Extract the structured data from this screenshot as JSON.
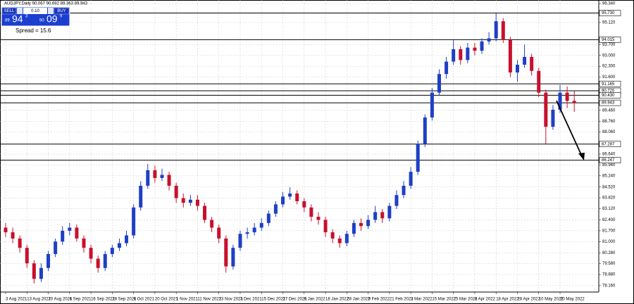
{
  "chart_data": {
    "type": "candlestick",
    "title": "AUDJPY,Daily 90.067 90.692 89.363 89.943",
    "trade_panel": {
      "sell": "SELL",
      "lot": "0.10",
      "buy": "BUY",
      "sell_price": [
        "89",
        "94",
        "3"
      ],
      "buy_price": [
        "90",
        "09",
        "9"
      ],
      "spread": "Spread = 15.6"
    },
    "up_color": "#1f3fc4",
    "down_color": "#c8102e",
    "grid": true,
    "categories": [
      "3 Aug 2021",
      null,
      null,
      "13 Aug 2021",
      null,
      null,
      "20 Aug 2021",
      null,
      null,
      "6 Sep 2021",
      null,
      null,
      "16 Sep 2021",
      null,
      null,
      "28 Sep 2021",
      null,
      null,
      "8 Oct 2021",
      null,
      null,
      "20 Oct 2021",
      null,
      null,
      "1 Nov 2021",
      null,
      null,
      "11 Nov 2021",
      null,
      null,
      "23 Nov 2021",
      null,
      null,
      "3 Dec 2021",
      null,
      null,
      "15 Dec 2021",
      null,
      null,
      "27 Dec 2021",
      null,
      null,
      "6 Jan 2022",
      null,
      null,
      "18 Jan 2022",
      null,
      null,
      "28 Jan 2022",
      null,
      null,
      "9 Feb 2022",
      null,
      null,
      "21 Feb 2022",
      null,
      null,
      "3 Mar 2022",
      null,
      null,
      "15 Mar 2022",
      null,
      null,
      "25 Mar 2022",
      null,
      null,
      "6 Apr 2022",
      null,
      null,
      "18 Apr 2022",
      null,
      null,
      "28 Apr 2022",
      null,
      null,
      "10 May 2022",
      null,
      null,
      "20 May 2022",
      null,
      null
    ],
    "open": [
      81.9,
      81.6,
      81.2,
      80.6,
      79.6,
      78.6,
      79.3,
      80.2,
      81.0,
      81.7,
      81.9,
      81.2,
      80.6,
      79.9,
      79.3,
      80.2,
      80.6,
      80.9,
      81.4,
      83.2,
      84.6,
      85.6,
      85.1,
      85.3,
      84.6,
      83.8,
      83.5,
      83.7,
      83.3,
      82.4,
      81.9,
      81.2,
      79.4,
      80.6,
      81.5,
      81.6,
      81.9,
      82.2,
      82.8,
      83.4,
      83.9,
      84.1,
      83.6,
      83.2,
      82.6,
      82.4,
      81.6,
      81.2,
      80.9,
      81.5,
      82.2,
      82.0,
      82.4,
      82.9,
      82.5,
      83.3,
      84.0,
      84.6,
      85.5,
      87.3,
      89.0,
      90.6,
      91.8,
      92.6,
      93.4,
      92.7,
      93.5,
      93.3,
      93.9,
      94.1,
      95.2,
      94.0,
      91.9,
      92.4,
      92.9,
      92.0,
      90.6,
      88.4,
      89.5,
      90.6,
      90.067
    ],
    "high": [
      82.2,
      81.9,
      81.4,
      80.8,
      79.8,
      79.6,
      80.4,
      81.2,
      82.0,
      82.2,
      82.1,
      81.4,
      80.8,
      80.1,
      80.4,
      80.8,
      81.2,
      81.7,
      83.4,
      84.9,
      86.0,
      85.9,
      85.7,
      85.5,
      84.8,
      84.1,
      84.0,
      84.0,
      83.5,
      82.6,
      82.1,
      81.4,
      80.8,
      81.7,
      81.9,
      82.2,
      82.5,
      83.0,
      83.6,
      84.2,
      84.5,
      84.3,
      83.8,
      83.4,
      82.9,
      82.6,
      81.8,
      81.4,
      81.7,
      82.4,
      82.5,
      82.7,
      83.3,
      83.1,
      83.5,
      84.3,
      84.9,
      85.8,
      87.5,
      89.2,
      90.9,
      92.1,
      92.9,
      94.0,
      93.6,
      93.8,
      93.8,
      94.1,
      94.5,
      95.73,
      95.4,
      94.2,
      92.7,
      93.7,
      93.1,
      92.2,
      90.8,
      89.8,
      91.1,
      91.0,
      90.692
    ],
    "low": [
      81.3,
      80.9,
      80.3,
      79.3,
      78.3,
      78.4,
      79.1,
      80.0,
      80.8,
      81.4,
      81.0,
      80.3,
      79.6,
      79.0,
      79.1,
      80.0,
      80.4,
      80.7,
      81.2,
      83.0,
      84.4,
      84.8,
      84.9,
      84.3,
      83.5,
      83.2,
      83.3,
      83.0,
      82.2,
      81.6,
      80.9,
      79.0,
      79.2,
      80.4,
      81.2,
      81.4,
      81.7,
      82.0,
      82.6,
      83.2,
      83.7,
      83.4,
      82.9,
      82.3,
      82.1,
      81.3,
      80.9,
      80.6,
      80.7,
      81.3,
      81.7,
      81.8,
      82.2,
      82.2,
      82.3,
      83.1,
      83.8,
      84.4,
      85.3,
      87.1,
      88.8,
      90.4,
      91.5,
      92.4,
      92.4,
      92.5,
      93.0,
      93.1,
      93.7,
      93.9,
      93.8,
      91.6,
      91.3,
      92.2,
      91.7,
      90.3,
      87.3,
      88.2,
      89.3,
      89.6,
      89.363
    ],
    "close": [
      81.6,
      81.2,
      80.6,
      79.6,
      78.6,
      79.3,
      80.2,
      81.0,
      81.7,
      81.9,
      81.2,
      80.6,
      79.9,
      79.3,
      80.2,
      80.6,
      80.9,
      81.4,
      83.2,
      84.6,
      85.6,
      85.1,
      85.3,
      84.6,
      83.8,
      83.5,
      83.7,
      83.3,
      82.4,
      81.9,
      81.2,
      79.4,
      80.6,
      81.5,
      81.6,
      81.9,
      82.2,
      82.8,
      83.4,
      83.9,
      84.1,
      83.6,
      83.2,
      82.6,
      82.4,
      81.6,
      81.2,
      80.9,
      81.5,
      82.2,
      82.0,
      82.4,
      82.9,
      82.5,
      83.3,
      84.0,
      84.6,
      85.5,
      87.3,
      89.0,
      90.6,
      91.8,
      92.6,
      93.4,
      92.7,
      93.5,
      93.3,
      93.9,
      94.1,
      95.2,
      94.0,
      91.9,
      92.4,
      92.9,
      92.0,
      90.6,
      88.4,
      89.5,
      90.6,
      90.067,
      89.943
    ],
    "ylim": [
      77.84,
      96.57
    ],
    "yticks": [
      {
        "value": 96.34,
        "label": "96.340"
      },
      {
        "value": 95.12,
        "label": "95.120"
      },
      {
        "value": 93.7,
        "label": "93.700"
      },
      {
        "value": 93.0,
        "label": "93.000"
      },
      {
        "value": 92.3,
        "label": "92.300"
      },
      {
        "value": 91.6,
        "label": "91.600"
      },
      {
        "value": 89.46,
        "label": "89.460"
      },
      {
        "value": 88.76,
        "label": "88.760"
      },
      {
        "value": 88.06,
        "label": "88.060"
      },
      {
        "value": 86.64,
        "label": "86.640"
      },
      {
        "value": 85.94,
        "label": "85.940"
      },
      {
        "value": 85.24,
        "label": "85.240"
      },
      {
        "value": 84.52,
        "label": "84.520"
      },
      {
        "value": 83.82,
        "label": "83.820"
      },
      {
        "value": 83.12,
        "label": "83.120"
      },
      {
        "value": 82.4,
        "label": "82.400"
      },
      {
        "value": 81.7,
        "label": "81.700"
      },
      {
        "value": 81.0,
        "label": "81.000"
      },
      {
        "value": 80.28,
        "label": "80.280"
      },
      {
        "value": 79.58,
        "label": "79.580"
      },
      {
        "value": 78.88,
        "label": "78.880"
      },
      {
        "value": 78.16,
        "label": "78.160"
      }
    ],
    "levels": [
      {
        "value": 95.73,
        "label": "95.730"
      },
      {
        "value": 94.015,
        "label": "94.015"
      },
      {
        "value": 91.165,
        "label": "91.165"
      },
      {
        "value": 90.72,
        "label": "90.720"
      },
      {
        "value": 90.43,
        "label": "90.430"
      },
      {
        "value": 89.943,
        "label": "89.943"
      },
      {
        "value": 87.287,
        "label": "87.287"
      },
      {
        "value": 86.247,
        "label": "86.247"
      }
    ]
  }
}
